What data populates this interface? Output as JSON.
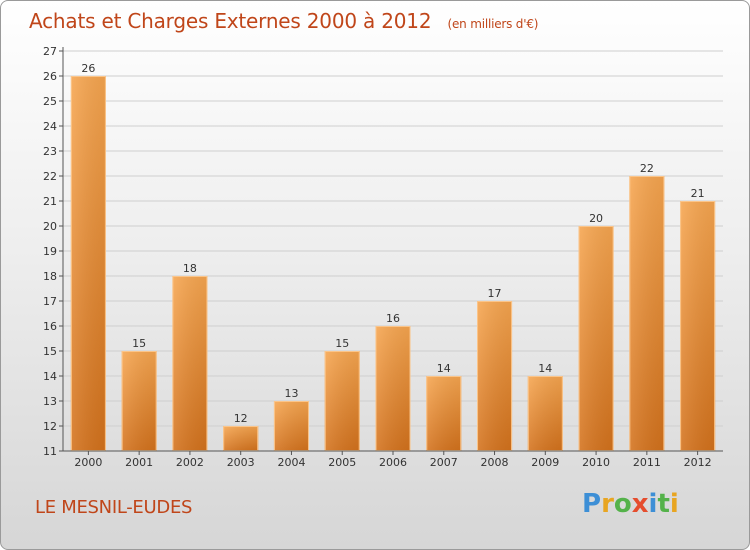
{
  "title": "Achats et Charges Externes 2000 à 2012",
  "title_unit": "(en milliers d'€)",
  "commune": "LE MESNIL-EUDES",
  "logo": {
    "text": "Proxiti",
    "letters": [
      {
        "ch": "P",
        "color": "#3d8fd6"
      },
      {
        "ch": "r",
        "color": "#e8a521"
      },
      {
        "ch": "o",
        "color": "#54b24a"
      },
      {
        "ch": "x",
        "color": "#e54d2e"
      },
      {
        "ch": "i",
        "color": "#3d8fd6"
      },
      {
        "ch": "t",
        "color": "#54b24a"
      },
      {
        "ch": "i",
        "color": "#e8a521"
      }
    ]
  },
  "colors": {
    "bar_top": "#f7a650",
    "bar_bottom": "#d4721c",
    "title": "#c0461a"
  },
  "chart_data": {
    "type": "bar",
    "title": "Achats et Charges Externes 2000 à 2012",
    "xlabel": "",
    "ylabel": "en milliers d'€",
    "categories": [
      "2000",
      "2001",
      "2002",
      "2003",
      "2004",
      "2005",
      "2006",
      "2007",
      "2008",
      "2009",
      "2010",
      "2011",
      "2012"
    ],
    "values": [
      26,
      15,
      18,
      12,
      13,
      15,
      16,
      14,
      17,
      14,
      20,
      22,
      21
    ],
    "ylim": [
      11,
      27
    ],
    "yticks": [
      11,
      12,
      13,
      14,
      15,
      16,
      17,
      18,
      19,
      20,
      21,
      22,
      23,
      24,
      25,
      26,
      27
    ],
    "grid": true
  }
}
